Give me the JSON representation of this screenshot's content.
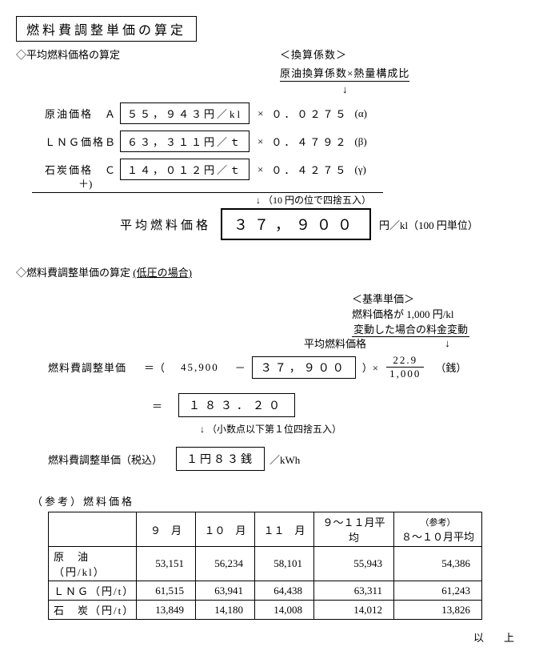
{
  "title": "燃料費調整単価の算定",
  "section1": {
    "heading": "◇平均燃料価格の算定",
    "conv_label": "＜換算係数＞",
    "conv_desc": "原油換算係数×熱量構成比",
    "rows": [
      {
        "label": "原油価格　Ａ",
        "value": "５５，９４３円／kl",
        "coef": "０．０２７５",
        "greek": "(α)"
      },
      {
        "label": "ＬＮＧ価格Ｂ",
        "value": "６３，３１１円／ｔ",
        "coef": "０．４７９２",
        "greek": "(β)"
      },
      {
        "label": "石炭価格　Ｃ",
        "value": "１４，０１２円／ｔ",
        "coef": "０．４２７５",
        "greek": "(γ)"
      }
    ],
    "plus": "＋)",
    "arrow_note": "↓ （10 円の位で四捨五入）",
    "avg_label": "平均燃料価格",
    "avg_value": "３７，９００",
    "avg_unit": "円／kl（100 円単位）"
  },
  "section2": {
    "heading": "◇燃料費調整単価の算定",
    "heading_note": "(低圧の場合)",
    "base_label": "＜基準単価＞",
    "base_line1": "燃料価格が 1,000 円/kl",
    "base_line2": "変動した場合の料金変動",
    "mid_label": "平均燃料価格",
    "calc_label": "燃料費調整単価",
    "const1": "45,900",
    "avg_box": "３７，９００",
    "frac_top": "22.9",
    "frac_bot": "1,000",
    "sen": "（銭）",
    "result": "１８３．２０",
    "round_note": "↓ （小数点以下第１位四捨五入）",
    "final_label": "燃料費調整単価（税込）",
    "final_value": "１円８３銭",
    "final_unit": "／kWh"
  },
  "ref": {
    "heading": "（参考）燃料価格",
    "cols": [
      "",
      "９　月",
      "１０　月",
      "１１　月",
      "９～１１月平均",
      "（参考）\n８～１０月平均"
    ],
    "rows": [
      {
        "h": "原　油（円/kl）",
        "v": [
          "53,151",
          "56,234",
          "58,101",
          "55,943",
          "54,386"
        ]
      },
      {
        "h": "ＬＮＧ（円/t）",
        "v": [
          "61,515",
          "63,941",
          "64,438",
          "63,311",
          "61,243"
        ]
      },
      {
        "h": "石　炭（円/t）",
        "v": [
          "13,849",
          "14,180",
          "14,008",
          "14,012",
          "13,826"
        ]
      }
    ]
  },
  "footer": "以　上"
}
